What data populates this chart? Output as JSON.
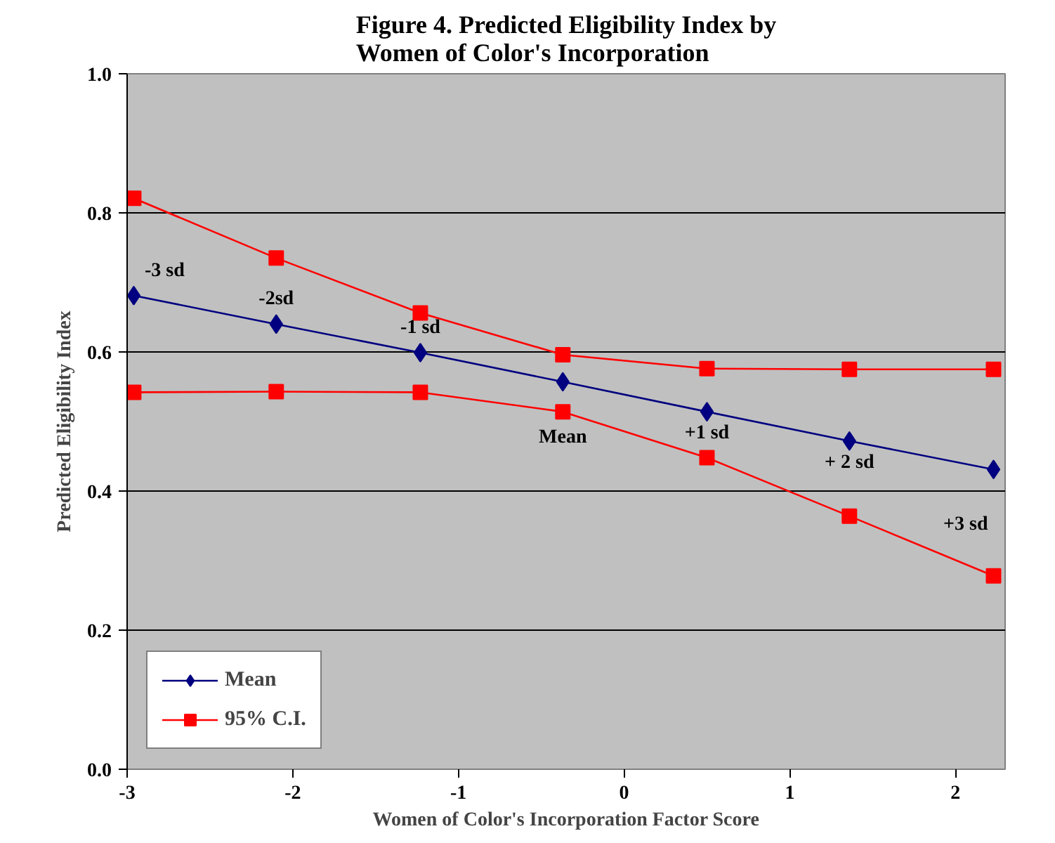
{
  "chart_data": {
    "type": "line",
    "title": "Figure 4. Predicted Eligibility Index by\nWomen of Color's Incorporation",
    "xlabel": "Women of Color's Incorporation Factor Score",
    "ylabel": "Predicted Eligibility Index",
    "x": [
      -2.96,
      -2.1,
      -1.23,
      -0.37,
      0.5,
      1.36,
      2.23
    ],
    "series": [
      {
        "name": "Mean",
        "color": "#000080",
        "marker": "diamond",
        "values": [
          0.681,
          0.64,
          0.599,
          0.557,
          0.514,
          0.472,
          0.431
        ]
      },
      {
        "name": "95% C.I.",
        "color": "#ff0000",
        "marker": "square",
        "values": [
          0.821,
          0.735,
          0.656,
          0.596,
          0.576,
          0.575,
          0.575
        ]
      },
      {
        "color": "#ff0000",
        "marker": "square",
        "values": [
          0.542,
          0.543,
          0.542,
          0.514,
          0.448,
          0.364,
          0.278
        ]
      }
    ],
    "xlim": [
      -3,
      2.3
    ],
    "xticks": [
      -3,
      -2,
      -1,
      0,
      1,
      2
    ],
    "ylim": [
      0,
      1
    ],
    "yticks": [
      {
        "value": 0,
        "label": "0.0"
      },
      0.2,
      0.4,
      0.6,
      0.8,
      {
        "value": 1,
        "label": "1.0"
      }
    ],
    "annotations": [
      {
        "text": "-3 sd",
        "x": -2.96,
        "y": 0.681
      },
      {
        "text": "-2sd",
        "x": -2.1,
        "y": 0.64
      },
      {
        "text": "-1 sd",
        "x": -1.23,
        "y": 0.599
      },
      {
        "text": "Mean",
        "x": -0.37,
        "y": 0.557
      },
      {
        "text": "+1 sd",
        "x": 0.5,
        "y": 0.514
      },
      {
        "text": "+ 2 sd",
        "x": 1.36,
        "y": 0.472
      },
      {
        "text": "+3 sd",
        "x": 2.23,
        "y": 0.431
      }
    ],
    "grid": "y",
    "legend": "bottom left"
  }
}
